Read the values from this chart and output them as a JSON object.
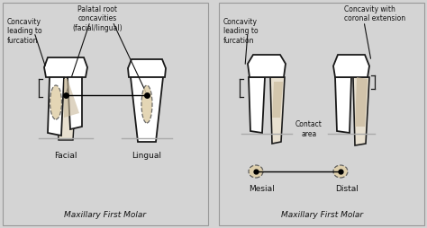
{
  "bg_color": "#d4d4d4",
  "tooth_fill": "#ffffff",
  "tooth_outline": "#1a1a1a",
  "concavity_fill": "#c8b89a",
  "dashed_fill": "#d8c8a8",
  "title_left": "Maxillary First Molar",
  "title_right": "Maxillary First Molar",
  "label_facial": "Facial",
  "label_lingual": "Lingual",
  "label_mesial": "Mesial",
  "label_distal": "Distal",
  "ann_concavity_left": "Concavity\nleading to\nfurcation",
  "ann_palatal": "Palatal root\nconcavities\n(facial/lingual)",
  "ann_concavity_right": "Concavity\nleading to\nfurcation",
  "ann_concavity_coronal": "Concavity with\ncoronal extension",
  "ann_contact": "Contact\narea",
  "font_size_label": 6.5,
  "font_size_title": 6.5,
  "font_size_ann": 5.5
}
